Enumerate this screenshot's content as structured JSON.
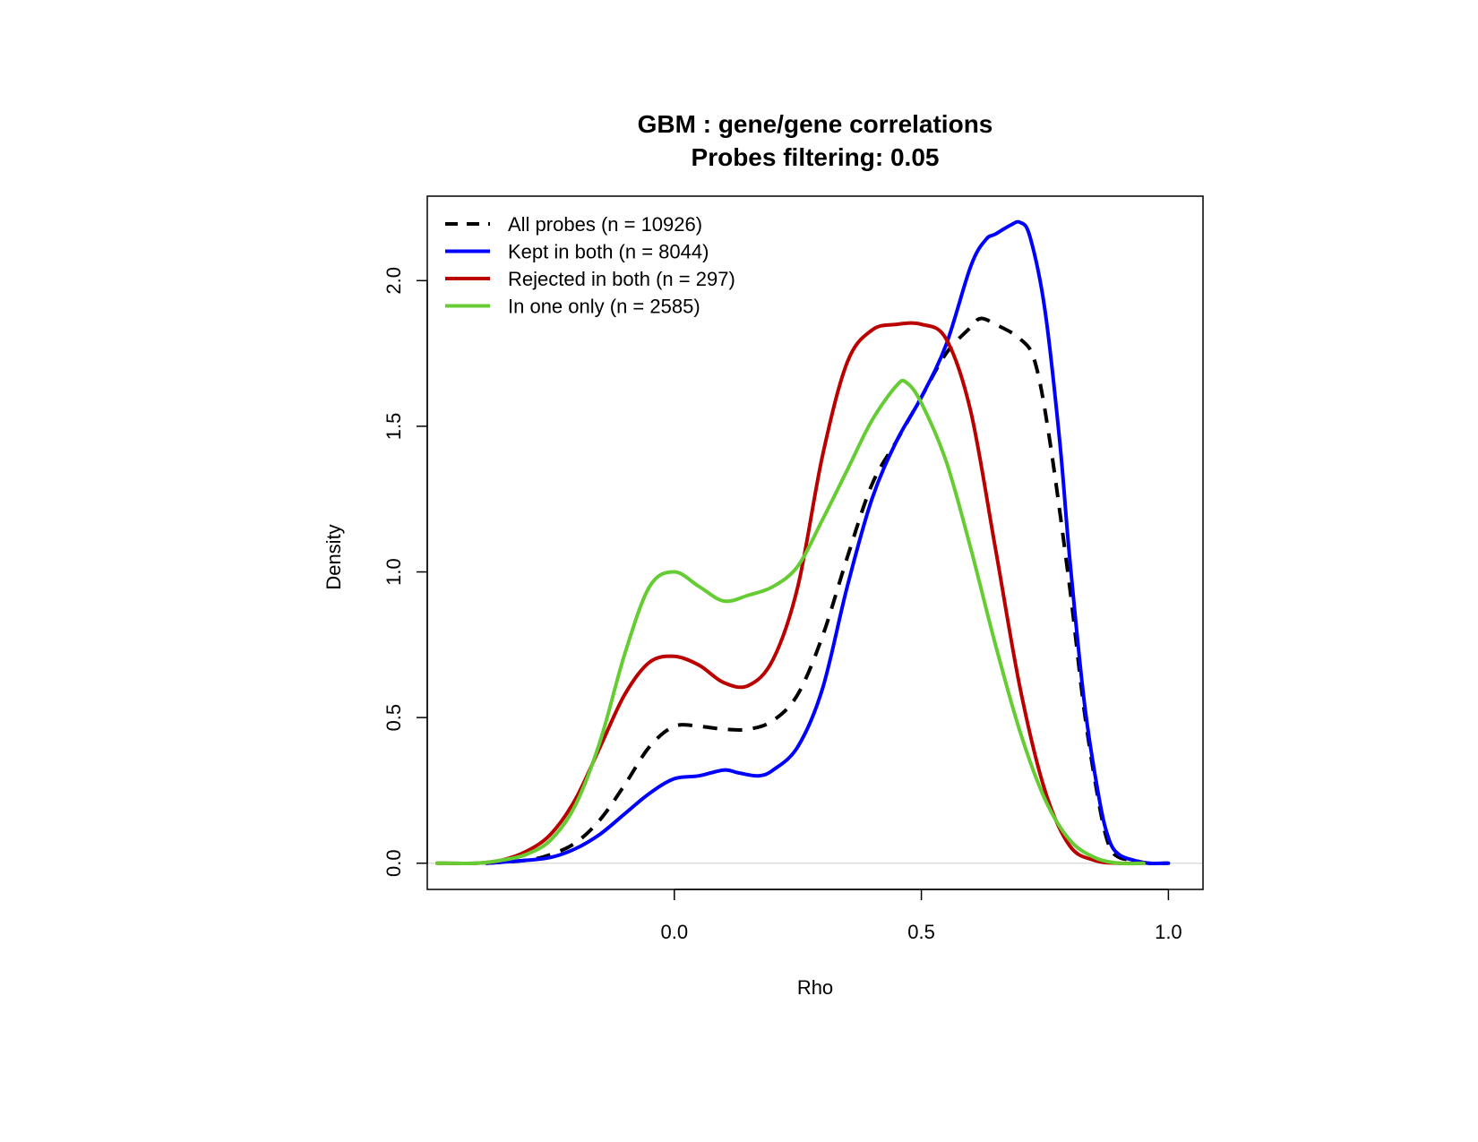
{
  "chart_data": {
    "type": "line",
    "title": "GBM : gene/gene correlations",
    "subtitle": "Probes filtering: 0.05",
    "xlabel": "Rho",
    "ylabel": "Density",
    "xlim": [
      -0.5,
      1.07
    ],
    "ylim": [
      -0.09,
      2.29
    ],
    "x_ticks": [
      0.0,
      0.5,
      1.0
    ],
    "x_tick_labels": [
      "0.0",
      "0.5",
      "1.0"
    ],
    "y_ticks": [
      0.0,
      0.5,
      1.0,
      1.5,
      2.0
    ],
    "y_tick_labels": [
      "0.0",
      "0.5",
      "1.0",
      "1.5",
      "2.0"
    ],
    "baseline": 0,
    "grid": false,
    "legend_position": "top-left",
    "series": [
      {
        "name": "All probes (n = 10926)",
        "color": "#000000",
        "dash": "dashed",
        "x": [
          -0.38,
          -0.3,
          -0.25,
          -0.2,
          -0.15,
          -0.1,
          -0.05,
          0.0,
          0.05,
          0.1,
          0.15,
          0.2,
          0.25,
          0.3,
          0.35,
          0.4,
          0.45,
          0.5,
          0.55,
          0.6,
          0.62,
          0.65,
          0.7,
          0.73,
          0.76,
          0.8,
          0.83,
          0.86,
          0.88,
          0.9,
          0.93,
          0.96,
          1.0
        ],
        "y": [
          0.0,
          0.01,
          0.03,
          0.07,
          0.15,
          0.27,
          0.4,
          0.47,
          0.47,
          0.46,
          0.46,
          0.49,
          0.58,
          0.78,
          1.05,
          1.3,
          1.45,
          1.6,
          1.75,
          1.84,
          1.87,
          1.85,
          1.8,
          1.72,
          1.45,
          0.95,
          0.52,
          0.2,
          0.06,
          0.02,
          0.01,
          0.0,
          0.0
        ]
      },
      {
        "name": "Kept in both (n = 8044)",
        "color": "#0000ff",
        "dash": "solid",
        "x": [
          -0.38,
          -0.3,
          -0.25,
          -0.2,
          -0.15,
          -0.1,
          -0.05,
          0.0,
          0.05,
          0.1,
          0.13,
          0.17,
          0.2,
          0.25,
          0.3,
          0.35,
          0.4,
          0.45,
          0.5,
          0.55,
          0.6,
          0.63,
          0.65,
          0.68,
          0.7,
          0.72,
          0.75,
          0.78,
          0.8,
          0.83,
          0.86,
          0.88,
          0.9,
          0.93,
          0.96,
          1.0
        ],
        "y": [
          0.0,
          0.01,
          0.02,
          0.05,
          0.1,
          0.17,
          0.24,
          0.29,
          0.3,
          0.32,
          0.31,
          0.3,
          0.32,
          0.4,
          0.6,
          0.95,
          1.25,
          1.45,
          1.6,
          1.78,
          2.05,
          2.14,
          2.16,
          2.19,
          2.2,
          2.15,
          1.9,
          1.45,
          1.05,
          0.55,
          0.22,
          0.08,
          0.03,
          0.01,
          0.0,
          0.0
        ]
      },
      {
        "name": "Rejected in both (n = 297)",
        "color": "#bb0000",
        "dash": "solid",
        "x": [
          -0.48,
          -0.4,
          -0.35,
          -0.3,
          -0.25,
          -0.2,
          -0.15,
          -0.1,
          -0.05,
          0.0,
          0.05,
          0.1,
          0.15,
          0.2,
          0.25,
          0.3,
          0.35,
          0.4,
          0.45,
          0.5,
          0.55,
          0.6,
          0.65,
          0.7,
          0.75,
          0.8,
          0.85,
          0.9,
          0.95
        ],
        "y": [
          0.0,
          0.0,
          0.01,
          0.04,
          0.1,
          0.22,
          0.4,
          0.58,
          0.69,
          0.71,
          0.68,
          0.62,
          0.61,
          0.7,
          0.95,
          1.4,
          1.72,
          1.83,
          1.85,
          1.85,
          1.8,
          1.55,
          1.08,
          0.6,
          0.25,
          0.06,
          0.01,
          0.0,
          0.0
        ]
      },
      {
        "name": "In one only (n = 2585)",
        "color": "#66cc33",
        "dash": "solid",
        "x": [
          -0.48,
          -0.4,
          -0.35,
          -0.3,
          -0.25,
          -0.2,
          -0.15,
          -0.1,
          -0.05,
          0.0,
          0.05,
          0.1,
          0.15,
          0.2,
          0.25,
          0.3,
          0.35,
          0.4,
          0.45,
          0.47,
          0.5,
          0.55,
          0.6,
          0.65,
          0.7,
          0.75,
          0.8,
          0.85,
          0.9,
          0.95
        ],
        "y": [
          0.0,
          0.0,
          0.01,
          0.03,
          0.08,
          0.2,
          0.42,
          0.72,
          0.95,
          1.0,
          0.95,
          0.9,
          0.92,
          0.95,
          1.02,
          1.18,
          1.35,
          1.52,
          1.64,
          1.65,
          1.58,
          1.38,
          1.08,
          0.75,
          0.45,
          0.22,
          0.08,
          0.02,
          0.0,
          0.0
        ]
      }
    ]
  }
}
